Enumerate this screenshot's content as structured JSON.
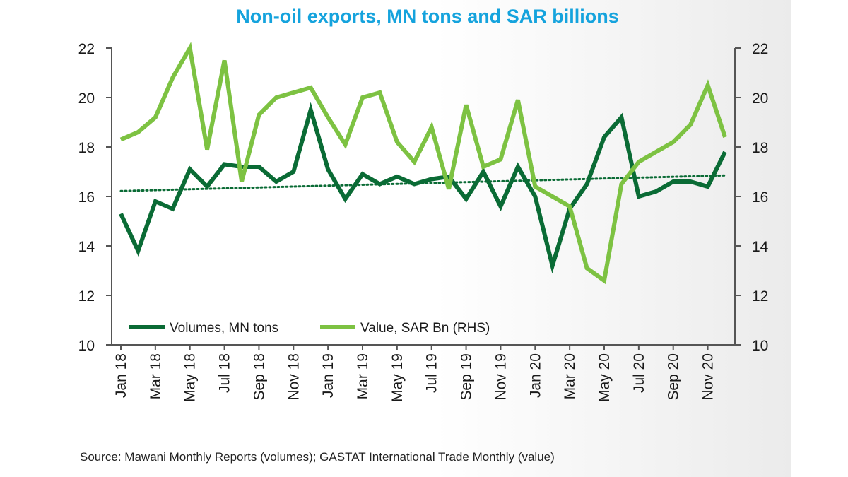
{
  "chart_data": {
    "type": "line",
    "title": "Non-oil exports, MN tons and SAR billions",
    "x": [
      "Jan 18",
      "Feb 18",
      "Mar 18",
      "Apr 18",
      "May 18",
      "Jun 18",
      "Jul 18",
      "Aug 18",
      "Sep 18",
      "Oct 18",
      "Nov 18",
      "Dec 18",
      "Jan 19",
      "Feb 19",
      "Mar 19",
      "Apr 19",
      "May 19",
      "Jun 19",
      "Jul 19",
      "Aug 19",
      "Sep 19",
      "Oct 19",
      "Nov 19",
      "Dec 19",
      "Jan 20",
      "Feb 20",
      "Mar 20",
      "Apr 20",
      "May 20",
      "Jun 20",
      "Jul 20",
      "Aug 20",
      "Sep 20",
      "Oct 20",
      "Nov 20",
      "Dec 20"
    ],
    "x_tick_labels": [
      "Jan 18",
      "Mar 18",
      "May 18",
      "Jul 18",
      "Sep 18",
      "Nov 18",
      "Jan 19",
      "Mar 19",
      "May 19",
      "Jul 19",
      "Sep 19",
      "Nov 19",
      "Jan 20",
      "Mar 20",
      "May 20",
      "Jul 20",
      "Sep 20",
      "Nov 20"
    ],
    "y_ticks": [
      "10",
      "12",
      "14",
      "16",
      "18",
      "20",
      "22"
    ],
    "ylim": [
      10,
      22
    ],
    "y2lim": [
      10,
      22
    ],
    "grid": false,
    "legend_position": "bottom-left",
    "series": [
      {
        "name": "Volumes, MN tons",
        "color": "#0a6b35",
        "axis": "left",
        "values": [
          15.3,
          13.8,
          15.8,
          15.5,
          17.1,
          16.4,
          17.3,
          17.2,
          17.2,
          16.6,
          17.0,
          19.5,
          17.1,
          15.9,
          16.9,
          16.5,
          16.8,
          16.5,
          16.7,
          16.8,
          15.9,
          17.0,
          15.6,
          17.2,
          16.0,
          13.2,
          15.5,
          16.5,
          18.4,
          19.2,
          16.0,
          16.2,
          16.6,
          16.6,
          16.4,
          17.8
        ]
      },
      {
        "name": "Value, SAR Bn (RHS)",
        "color": "#7dc242",
        "axis": "right",
        "values": [
          18.3,
          18.6,
          19.2,
          20.8,
          22.0,
          17.9,
          21.5,
          16.6,
          19.3,
          20.0,
          20.2,
          20.4,
          19.2,
          18.1,
          20.0,
          20.2,
          18.2,
          17.4,
          18.8,
          16.3,
          19.7,
          17.2,
          17.5,
          19.9,
          16.4,
          16.0,
          15.6,
          13.1,
          12.6,
          16.5,
          17.4,
          17.8,
          18.2,
          18.9,
          20.5,
          18.4
        ]
      }
    ],
    "trendline": {
      "series": "Volumes, MN tons",
      "start": 16.22,
      "end": 16.85,
      "style": "dotted",
      "color": "#0a6b35"
    }
  },
  "source": "Source: Mawani Monthly Reports (volumes); GASTAT International Trade Monthly (value)"
}
